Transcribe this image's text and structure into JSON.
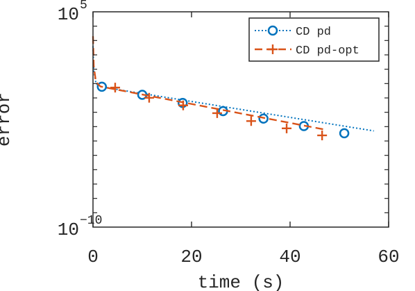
{
  "chart_data": {
    "type": "line",
    "xlabel": "time (s)",
    "ylabel": "error",
    "xlim": [
      0,
      60
    ],
    "ylim_log10": [
      -10,
      5
    ],
    "y_scale": "log",
    "grid": false,
    "legend_position": "top-right",
    "x_ticks": [
      {
        "value": 0,
        "label": "0"
      },
      {
        "value": 20,
        "label": "20"
      },
      {
        "value": 40,
        "label": "40"
      },
      {
        "value": 60,
        "label": "60"
      }
    ],
    "y_ticks": [
      {
        "log10": 5,
        "base": "10",
        "exponent": "5"
      },
      {
        "log10": -10,
        "base": "10",
        "exponent": "−10"
      }
    ],
    "series": [
      {
        "name": "CD pd",
        "color": "#0072BD",
        "line_style": "dotted",
        "marker": "circle",
        "curve": [
          {
            "x": 0,
            "log10_y": 2.6
          },
          {
            "x": 0.15,
            "log10_y": 0.9
          },
          {
            "x": 0.6,
            "log10_y": 0.0
          },
          {
            "x": 1.5,
            "log10_y": -0.22
          },
          {
            "x": 57,
            "log10_y": -3.3
          }
        ],
        "markers": [
          {
            "x": 1.8,
            "log10_y": -0.22
          },
          {
            "x": 10.0,
            "log10_y": -0.78
          },
          {
            "x": 18.2,
            "log10_y": -1.35
          },
          {
            "x": 26.4,
            "log10_y": -1.92
          },
          {
            "x": 34.6,
            "log10_y": -2.44
          },
          {
            "x": 42.8,
            "log10_y": -2.96
          },
          {
            "x": 51.0,
            "log10_y": -3.46
          }
        ]
      },
      {
        "name": "CD pd-opt",
        "color": "#D95319",
        "line_style": "dashed",
        "marker": "plus",
        "curve": [
          {
            "x": 0,
            "log10_y": 3.3
          },
          {
            "x": 0.15,
            "log10_y": 1.2
          },
          {
            "x": 0.6,
            "log10_y": 0.1
          },
          {
            "x": 1.5,
            "log10_y": -0.2
          },
          {
            "x": 47,
            "log10_y": -3.2
          }
        ],
        "markers": [
          {
            "x": 4.5,
            "log10_y": -0.28
          },
          {
            "x": 11.4,
            "log10_y": -0.99
          },
          {
            "x": 18.3,
            "log10_y": -1.52
          },
          {
            "x": 25.2,
            "log10_y": -2.06
          },
          {
            "x": 32.1,
            "log10_y": -2.61
          },
          {
            "x": 39.3,
            "log10_y": -3.12
          },
          {
            "x": 46.5,
            "log10_y": -3.61
          }
        ]
      }
    ]
  }
}
